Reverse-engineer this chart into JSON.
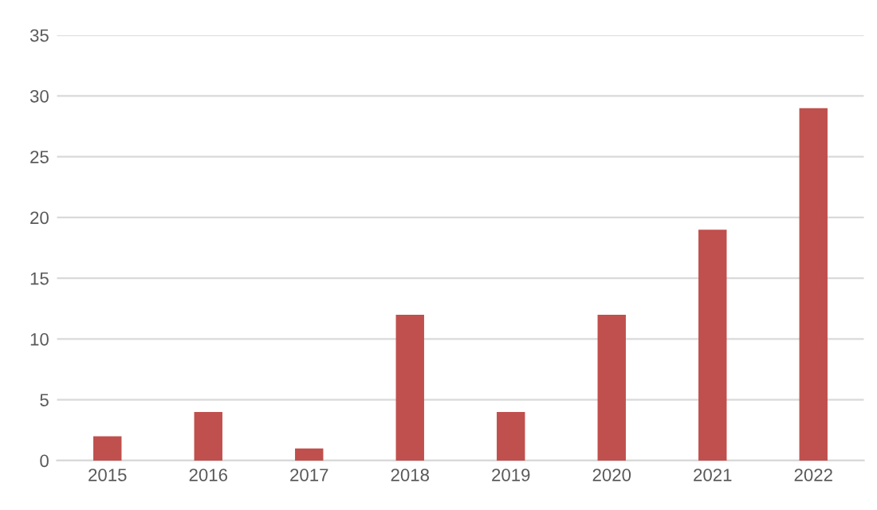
{
  "chart_data": {
    "type": "bar",
    "categories": [
      "2015",
      "2016",
      "2017",
      "2018",
      "2019",
      "2020",
      "2021",
      "2022"
    ],
    "values": [
      2,
      4,
      1,
      12,
      4,
      12,
      19,
      29
    ],
    "color": "#c0504d",
    "ylim": [
      0,
      35
    ],
    "yticks": [
      0,
      5,
      10,
      15,
      20,
      25,
      30,
      35
    ],
    "grid": "y"
  }
}
